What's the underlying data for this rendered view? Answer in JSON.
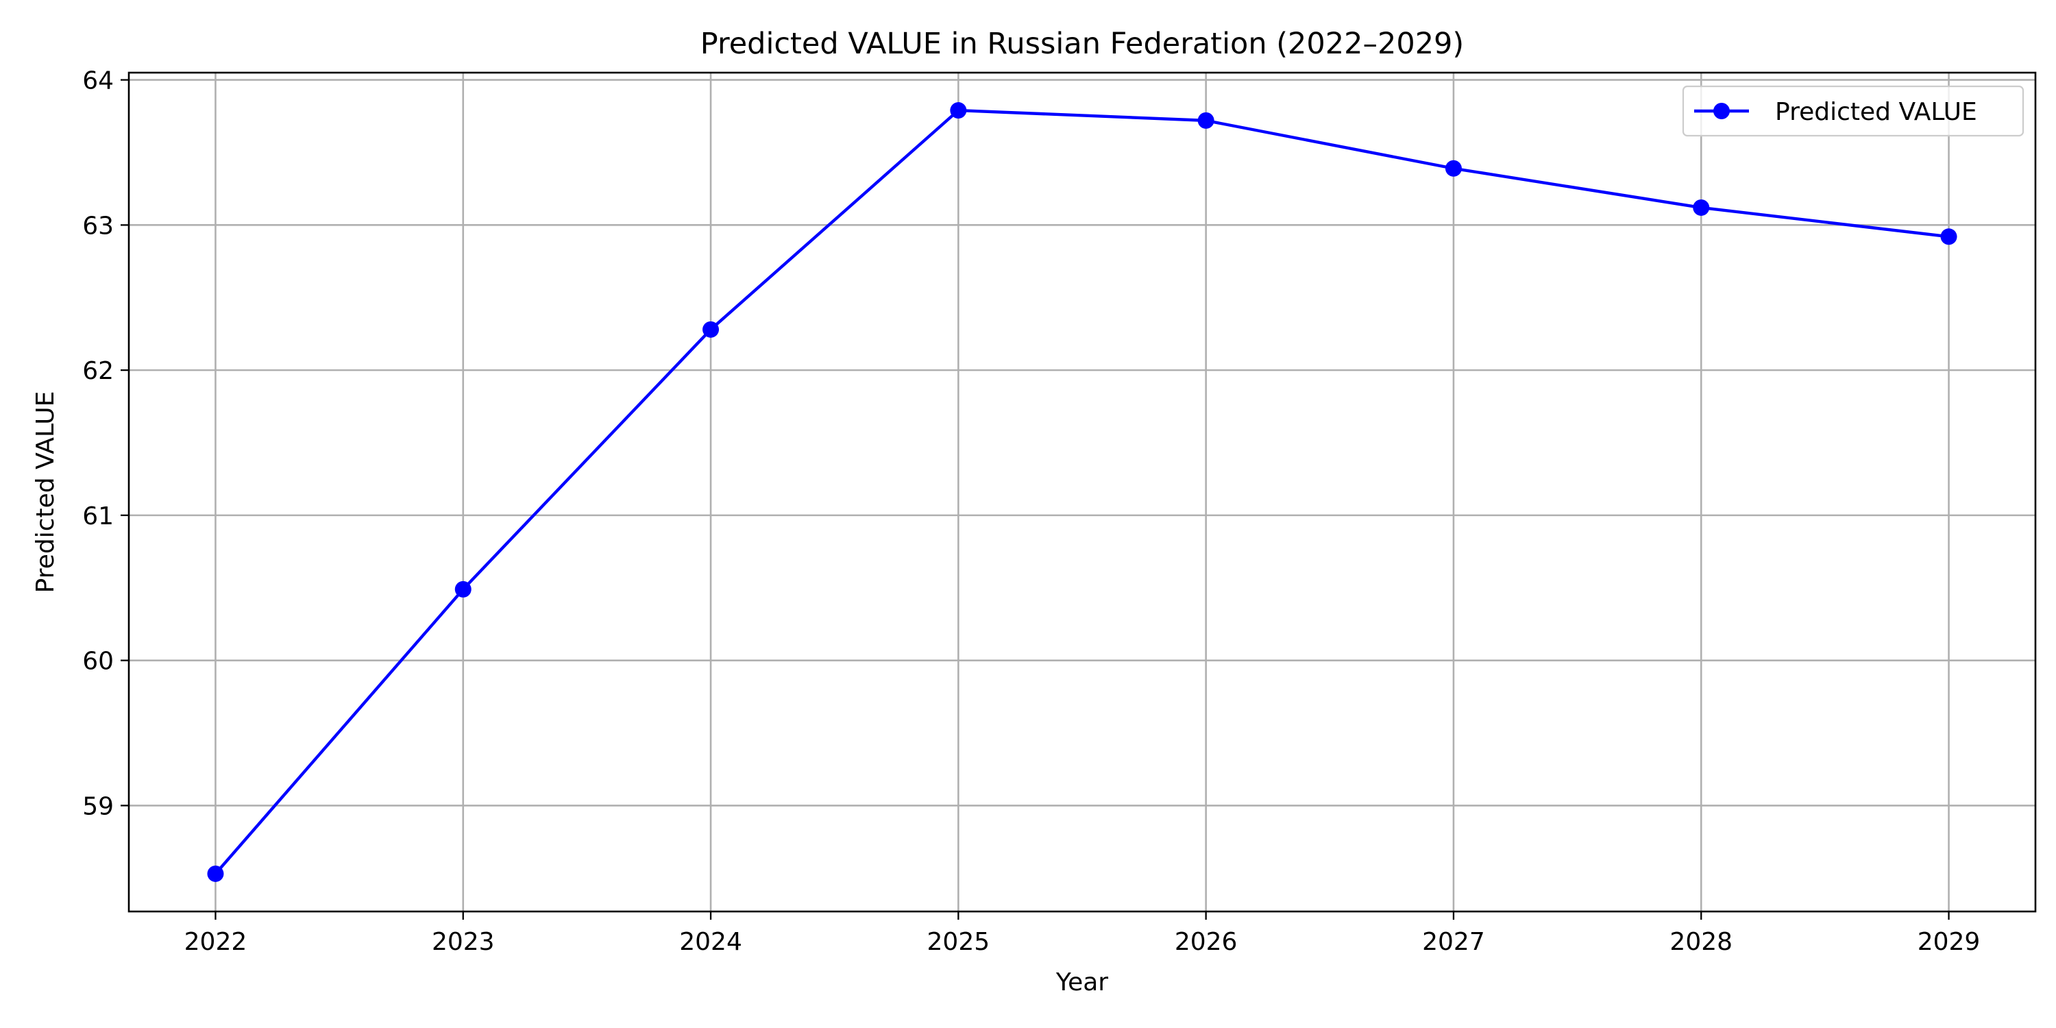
{
  "chart_data": {
    "type": "line",
    "title": "Predicted VALUE in Russian Federation (2022–2029)",
    "xlabel": "Year",
    "ylabel": "Predicted VALUE",
    "x": [
      2022,
      2023,
      2024,
      2025,
      2026,
      2027,
      2028,
      2029
    ],
    "x_ticks": [
      "2022",
      "2023",
      "2024",
      "2025",
      "2026",
      "2027",
      "2028",
      "2029"
    ],
    "xlim": [
      2021.65,
      2029.35
    ],
    "ylim": [
      58.27,
      64.05
    ],
    "y_ticks": [
      59,
      60,
      61,
      62,
      63,
      64
    ],
    "grid": true,
    "legend_position": "upper-right",
    "series": [
      {
        "name": "Predicted VALUE",
        "color": "#0000ff",
        "marker": "circle",
        "values": [
          58.53,
          60.49,
          62.28,
          63.79,
          63.72,
          63.39,
          63.12,
          62.92
        ]
      }
    ]
  }
}
